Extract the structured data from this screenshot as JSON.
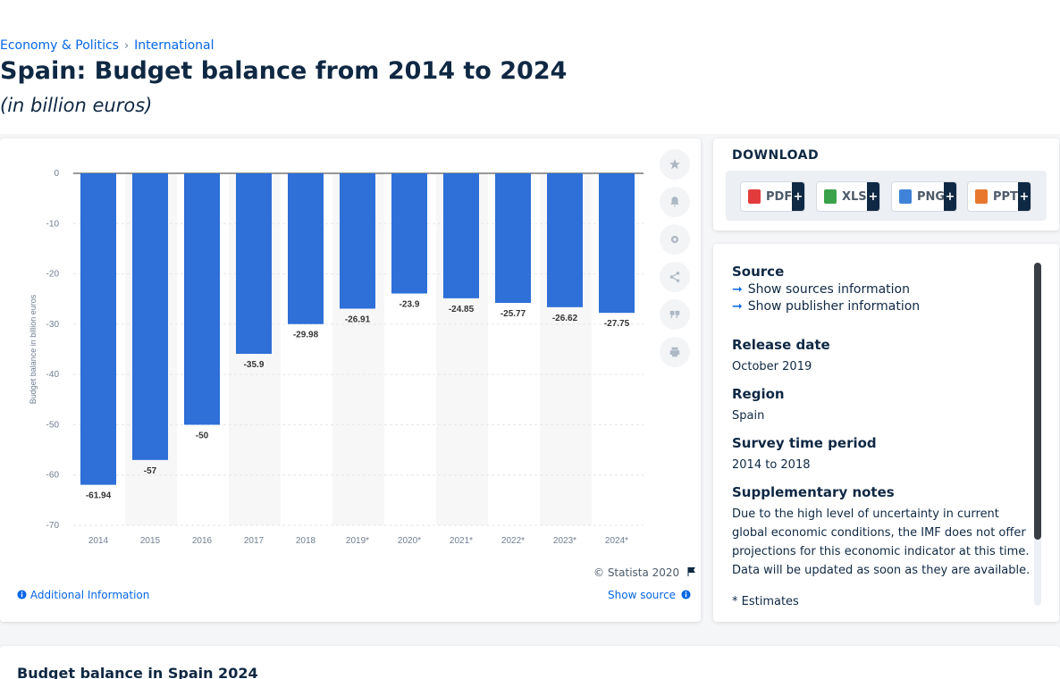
{
  "breadcrumb": {
    "item1": "Economy & Politics",
    "sep": "›",
    "item2": "International"
  },
  "page": {
    "title": "Spain: Budget balance from 2014 to 2024",
    "subtitle": "(in billion euros)"
  },
  "chart_data": {
    "type": "bar",
    "categories": [
      "2014",
      "2015",
      "2016",
      "2017",
      "2018",
      "2019*",
      "2020*",
      "2021*",
      "2022*",
      "2023*",
      "2024*"
    ],
    "values": [
      -61.94,
      -57,
      -50,
      -35.9,
      -29.98,
      -26.91,
      -23.9,
      -24.85,
      -25.77,
      -26.62,
      -27.75
    ],
    "value_labels": [
      "-61.94",
      "-57",
      "-50",
      "-35.9",
      "-29.98",
      "-26.91",
      "-23.9",
      "-24.85",
      "-25.77",
      "-26.62",
      "-27.75"
    ],
    "ylabel": "Budget balance in billion euros",
    "yticks": [
      0,
      -10,
      -20,
      -30,
      -40,
      -50,
      -60,
      -70
    ],
    "ylim": [
      -70,
      0
    ],
    "grid": true,
    "bar_color": "#2e6fd8",
    "title": "",
    "xlabel": ""
  },
  "chart_footer": {
    "copyright": "© Statista 2020",
    "additional_info": "Additional Information",
    "show_source": "Show source"
  },
  "side_tools": [
    "star-icon",
    "bell-icon",
    "gear-icon",
    "share-icon",
    "quote-icon",
    "print-icon"
  ],
  "download": {
    "title": "DOWNLOAD",
    "buttons": [
      {
        "label": "PDF",
        "plus": "+",
        "color": "#e23b3b"
      },
      {
        "label": "XLS",
        "plus": "+",
        "color": "#3aa24a"
      },
      {
        "label": "PNG",
        "plus": "+",
        "color": "#3f83d9"
      },
      {
        "label": "PPT",
        "plus": "+",
        "color": "#e8782e"
      }
    ]
  },
  "info": {
    "source_label": "Source",
    "show_sources": "Show sources information",
    "show_publisher": "Show publisher information",
    "release_label": "Release date",
    "release_value": "October 2019",
    "region_label": "Region",
    "region_value": "Spain",
    "survey_label": "Survey time period",
    "survey_value": "2014 to 2018",
    "notes_label": "Supplementary notes",
    "notes_value": "Due to the high level of uncertainty in current global economic conditions, the IMF does not offer projections for this economic indicator at this time. Data will be updated as soon as they are available.",
    "estimate_note": "* Estimates"
  },
  "bottom": {
    "title": "Budget balance in Spain 2024"
  }
}
